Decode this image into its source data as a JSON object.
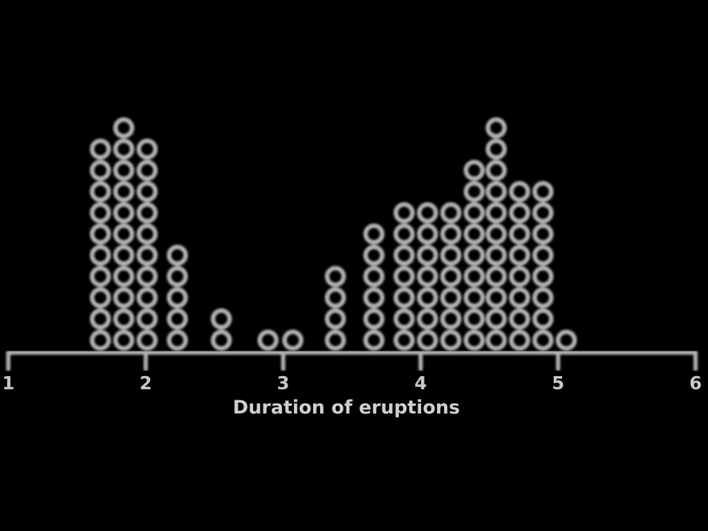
{
  "chart_data": {
    "type": "scatter",
    "subtype": "dot-plot",
    "title": "",
    "xlabel": "Duration of eruptions",
    "ylabel": "",
    "xlim": [
      1,
      6
    ],
    "x_ticks": [
      "1",
      "2",
      "3",
      "4",
      "5",
      "6"
    ],
    "grid": false,
    "legend": "none",
    "colors": {
      "background": "#000000",
      "marks": "#b3b3b3",
      "text": "#c8c8c8"
    },
    "bins": [
      {
        "x": 1.67,
        "count": 10
      },
      {
        "x": 1.84,
        "count": 11
      },
      {
        "x": 2.01,
        "count": 10
      },
      {
        "x": 2.23,
        "count": 5
      },
      {
        "x": 2.55,
        "count": 2
      },
      {
        "x": 2.89,
        "count": 1
      },
      {
        "x": 3.07,
        "count": 1
      },
      {
        "x": 3.38,
        "count": 4
      },
      {
        "x": 3.66,
        "count": 6
      },
      {
        "x": 3.88,
        "count": 7
      },
      {
        "x": 4.05,
        "count": 7
      },
      {
        "x": 4.22,
        "count": 7
      },
      {
        "x": 4.39,
        "count": 9
      },
      {
        "x": 4.55,
        "count": 11
      },
      {
        "x": 4.72,
        "count": 8
      },
      {
        "x": 4.89,
        "count": 8
      },
      {
        "x": 5.06,
        "count": 1
      }
    ]
  }
}
